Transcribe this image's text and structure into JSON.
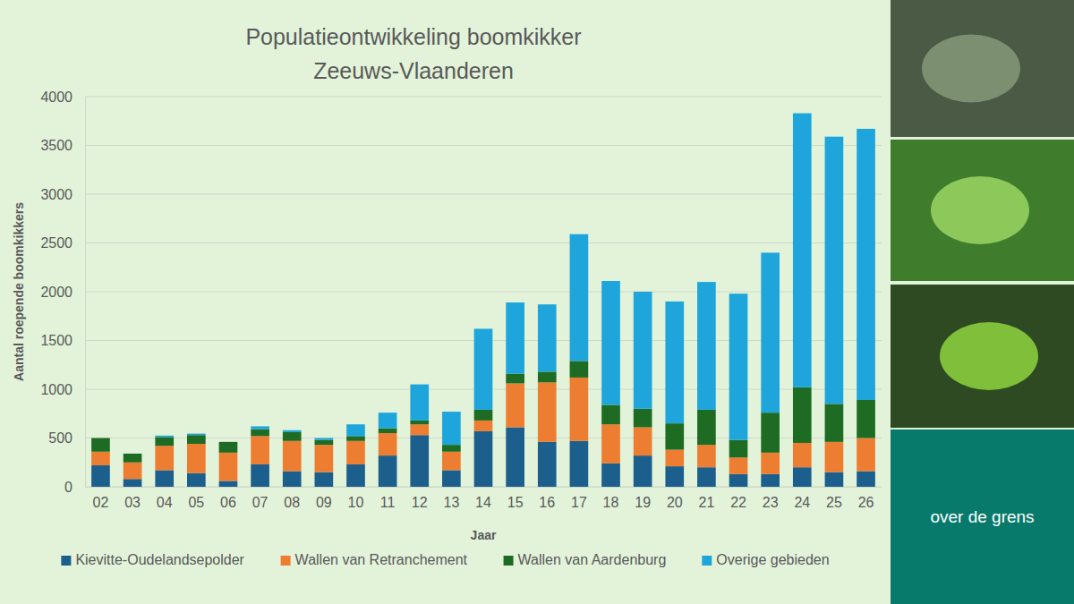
{
  "chart_data": {
    "type": "bar",
    "title": "Populatieontwikkeling boomkikker",
    "subtitle": "Zeeuws-Vlaanderen",
    "x_label": "Jaar",
    "y_label": "Aantal roepende boomkikkers",
    "annotations": [
      "over de grens"
    ],
    "categories": [
      "02",
      "03",
      "04",
      "05",
      "06",
      "07",
      "08",
      "09",
      "10",
      "11",
      "12",
      "13",
      "14",
      "15",
      "16",
      "17",
      "18",
      "19",
      "20",
      "21",
      "22",
      "23",
      "24",
      "25",
      "26"
    ],
    "series": [
      {
        "name": "Kievitte-Oudelandsepolder",
        "color": "#1d5f8c",
        "values": [
          220,
          80,
          170,
          140,
          60,
          230,
          160,
          150,
          230,
          320,
          530,
          170,
          570,
          610,
          460,
          470,
          240,
          320,
          210,
          200,
          130,
          130,
          200,
          150,
          160
        ]
      },
      {
        "name": "Wallen van Retranchement",
        "color": "#ed7d31",
        "values": [
          140,
          170,
          250,
          300,
          290,
          290,
          310,
          280,
          240,
          230,
          110,
          190,
          110,
          450,
          610,
          650,
          400,
          290,
          170,
          230,
          170,
          220,
          250,
          310,
          340
        ]
      },
      {
        "name": "Wallen van Aardenburg",
        "color": "#1e6b23",
        "values": [
          140,
          90,
          90,
          90,
          110,
          70,
          90,
          50,
          50,
          50,
          40,
          70,
          110,
          100,
          110,
          170,
          200,
          190,
          270,
          360,
          180,
          410,
          570,
          390,
          390
        ]
      },
      {
        "name": "Overige gebieden",
        "color": "#1ea6dc",
        "values": [
          0,
          0,
          15,
          15,
          0,
          30,
          20,
          20,
          120,
          160,
          370,
          340,
          830,
          730,
          690,
          1300,
          1270,
          1200,
          1250,
          1310,
          1500,
          1640,
          2810,
          2740,
          2780
        ]
      }
    ],
    "stacked": true,
    "ylim": [
      0,
      4000
    ],
    "yticks": [
      0,
      500,
      1000,
      1500,
      2000,
      2500,
      3000,
      3500,
      4000
    ],
    "grid": true,
    "legend": "bottom"
  }
}
